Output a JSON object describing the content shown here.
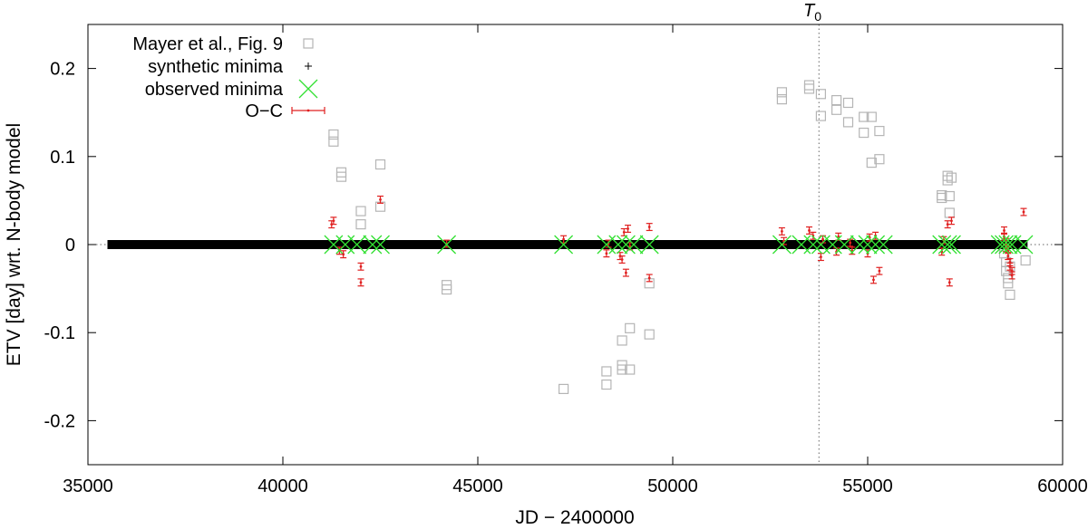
{
  "chart_data": {
    "type": "scatter",
    "title": "",
    "xlabel": "JD − 2400000",
    "ylabel": "ETV [day] wrt. N-body model",
    "xlim": [
      35000,
      60000
    ],
    "ylim": [
      -0.25,
      0.25
    ],
    "x_ticks": [
      35000,
      40000,
      45000,
      50000,
      55000,
      60000
    ],
    "y_ticks": [
      -0.2,
      -0.1,
      0,
      0.1,
      0.2
    ],
    "x_tick_labels": [
      "35000",
      "40000",
      "45000",
      "50000",
      "55000",
      "60000"
    ],
    "y_tick_labels": [
      "-0.2",
      "-0.1",
      "0",
      "0.1",
      "0.2"
    ],
    "grid": false,
    "zero_line": "dotted",
    "legend_position": "top-left",
    "vline": {
      "x": 53750,
      "label": "T",
      "subscript": "0"
    },
    "colors": {
      "mayer": "#b5b5b5",
      "synthetic": "#000000",
      "observed": "#33e033",
      "oc": "#e02020"
    },
    "series": [
      {
        "name": "Mayer et al., Fig. 9",
        "marker": "open-square",
        "x": [
          41300,
          41300,
          41500,
          41500,
          42000,
          42000,
          42500,
          42500,
          44200,
          44200,
          47200,
          48300,
          48300,
          48700,
          48700,
          48700,
          48900,
          48900,
          49400,
          49400,
          52800,
          52800,
          53500,
          53500,
          53800,
          53800,
          54200,
          54200,
          54500,
          54500,
          54900,
          54900,
          55100,
          55100,
          55300,
          55300,
          56900,
          56900,
          57050,
          57050,
          57100,
          57100,
          57150,
          58500,
          58500,
          58550,
          58550,
          58600,
          58600,
          58650,
          58650,
          59050
        ],
        "values": [
          0.125,
          0.117,
          0.082,
          0.077,
          0.038,
          0.023,
          0.091,
          0.043,
          -0.046,
          -0.051,
          -0.164,
          -0.144,
          -0.159,
          -0.109,
          -0.137,
          -0.142,
          -0.095,
          -0.142,
          -0.102,
          -0.044,
          0.173,
          0.165,
          0.181,
          0.177,
          0.171,
          0.146,
          0.164,
          0.153,
          0.161,
          0.139,
          0.145,
          0.127,
          0.145,
          0.093,
          0.129,
          0.097,
          0.056,
          0.053,
          0.078,
          0.073,
          0.055,
          0.036,
          0.076,
          -0.002,
          -0.01,
          -0.02,
          -0.03,
          -0.038,
          -0.044,
          -0.057,
          -0.025,
          -0.018
        ]
      },
      {
        "name": "synthetic minima",
        "marker": "plus",
        "x_start": 35500,
        "x_end": 59100,
        "value": 0
      },
      {
        "name": "observed minima",
        "marker": "x-cross",
        "x": [
          41300,
          41600,
          41900,
          42300,
          42500,
          44200,
          47200,
          48300,
          48600,
          48800,
          49000,
          49400,
          52800,
          53300,
          53600,
          53800,
          54100,
          54400,
          54800,
          55000,
          55200,
          55400,
          56900,
          57050,
          57150,
          58400,
          58500,
          58600,
          58700,
          59000
        ],
        "values": [
          0,
          0,
          0,
          0,
          0,
          0,
          0,
          0,
          0,
          0,
          0,
          0,
          0,
          0,
          0,
          0,
          0,
          0,
          0,
          0,
          0,
          0,
          0,
          0,
          0,
          0,
          0,
          0,
          0,
          0
        ]
      },
      {
        "name": "O−C",
        "marker": "errorbar",
        "error": 0.004,
        "x": [
          41250,
          41300,
          41450,
          41550,
          42000,
          42000,
          42500,
          44200,
          47200,
          48300,
          48350,
          48650,
          48700,
          48750,
          48800,
          48850,
          48900,
          49400,
          49400,
          52800,
          52850,
          53500,
          53600,
          53800,
          53850,
          54200,
          54250,
          54550,
          54600,
          55000,
          55050,
          55150,
          55200,
          55300,
          56900,
          56950,
          57050,
          57100,
          57150,
          58500,
          58500,
          58550,
          58550,
          58600,
          58600,
          58650,
          58650,
          58700,
          58700,
          59000
        ],
        "values": [
          0.023,
          0.027,
          -0.007,
          -0.011,
          -0.025,
          -0.043,
          0.051,
          0.001,
          0.006,
          -0.01,
          0.001,
          -0.013,
          -0.017,
          0.014,
          -0.032,
          0.018,
          -0.002,
          0.02,
          -0.038,
          0.015,
          0.004,
          0.016,
          0.01,
          -0.014,
          0.006,
          -0.008,
          0.009,
          0.002,
          -0.007,
          -0.01,
          0.008,
          -0.04,
          0.01,
          -0.03,
          -0.008,
          0.005,
          0.023,
          -0.043,
          0.027,
          0.016,
          0.009,
          0.003,
          -0.004,
          -0.006,
          -0.013,
          -0.02,
          -0.025,
          -0.03,
          -0.035,
          0.037
        ]
      }
    ]
  }
}
